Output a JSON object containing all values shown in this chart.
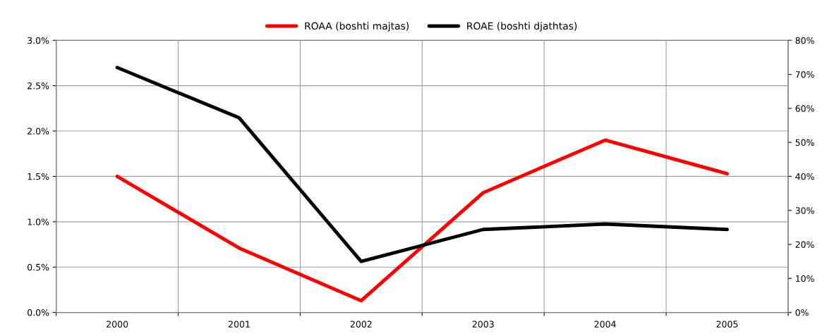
{
  "chart_data": {
    "type": "line",
    "categories": [
      "2000",
      "2001",
      "2002",
      "2003",
      "2004",
      "2005"
    ],
    "series": [
      {
        "name": "ROAA (boshti majtas)",
        "color": "#ff0000",
        "values": [
          1.5,
          0.71,
          0.13,
          1.32,
          1.9,
          1.53
        ]
      },
      {
        "name": "ROAE (boshti djathtas)",
        "color": "#000000",
        "axis": "y2",
        "values": [
          72,
          57.2,
          15,
          24.4,
          26,
          24.4
        ]
      }
    ],
    "ylim": [
      0,
      3.0
    ],
    "yticks": [
      {
        "value": 0,
        "label": "0.0%"
      },
      {
        "value": 0.5,
        "label": "0.5%"
      },
      {
        "value": 1.0,
        "label": "1.0%"
      },
      {
        "value": 1.5,
        "label": "1.5%"
      },
      {
        "value": 2.0,
        "label": "2.0%"
      },
      {
        "value": 2.5,
        "label": "2.5%"
      },
      {
        "value": 3.0,
        "label": "3.0%"
      }
    ],
    "y2lim": [
      0,
      80
    ],
    "y2ticks": [
      {
        "value": 0,
        "label": "0%"
      },
      {
        "value": 10,
        "label": "10%"
      },
      {
        "value": 20,
        "label": "20%"
      },
      {
        "value": 30,
        "label": "30%"
      },
      {
        "value": 40,
        "label": "40%"
      },
      {
        "value": 50,
        "label": "50%"
      },
      {
        "value": 60,
        "label": "60%"
      },
      {
        "value": 70,
        "label": "70%"
      },
      {
        "value": 80,
        "label": "80%"
      }
    ],
    "grid": true,
    "legend": "top",
    "marker": "none",
    "line_style": "solid"
  }
}
